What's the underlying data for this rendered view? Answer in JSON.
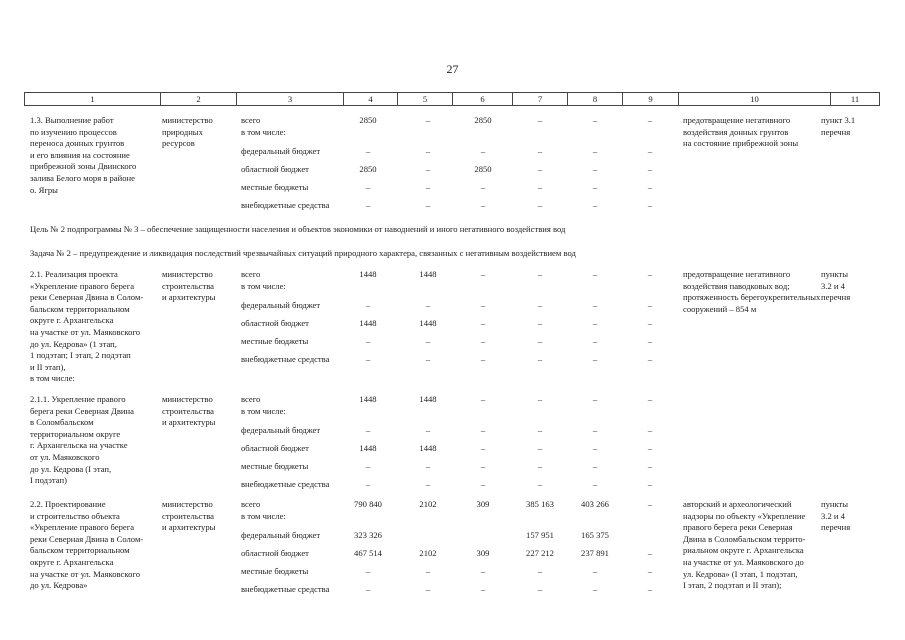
{
  "page_number": "27",
  "header_columns": [
    "1",
    "2",
    "3",
    "4",
    "5",
    "6",
    "7",
    "8",
    "9",
    "10",
    "11"
  ],
  "funding_labels": [
    "всего\nв том числе:",
    "федеральный бюджет",
    "областной бюджет",
    "местные бюджеты",
    "внебюджетные средства"
  ],
  "goal_text": "Цель № 2 подпрограммы № 3 – обеспечение защищенности населения и объектов экономики от наводнений и иного негативного воздействия вод",
  "task_text": "Задача № 2 – предупреждение и ликвидация последствий чрезвычайных ситуаций природного характера, связанных с негативным воздействием вод",
  "rows": [
    {
      "name": "1.3. Выполнение работ\nпо изучению процессов\nпереноса донных грунтов\nи его влияния на состояние\nприбрежной зоны Двинского\nзалива Белого моря в районе\nо. Ягры",
      "executor": "министерство\nприродных\nресурсов",
      "values": [
        [
          "2850",
          "–",
          "2850",
          "–",
          "–",
          "–"
        ],
        [
          "–",
          "–",
          "–",
          "–",
          "–",
          "–"
        ],
        [
          "2850",
          "–",
          "2850",
          "–",
          "–",
          "–"
        ],
        [
          "–",
          "–",
          "–",
          "–",
          "–",
          "–"
        ],
        [
          "–",
          "–",
          "–",
          "–",
          "–",
          "–"
        ]
      ],
      "result": "предотвращение негативного\nвоздействия донных грунтов\nна состояние прибрежной зоны",
      "reference": "пункт 3.1\nперечня"
    },
    {
      "name": "2.1. Реализация проекта\n«Укрепление правого берега\nреки Северная Двина в Солом-\nбальском территориальном\nокруге г. Архангельска\nна участке от ул. Маяковского\nдо ул. Кедрова» (1 этап,\n1 подэтап; I этап, 2 подэтап\nи II этап),\nв том числе:",
      "executor": "министерство\nстроительства\nи архитектуры",
      "values": [
        [
          "1448",
          "1448",
          "–",
          "–",
          "–",
          "–"
        ],
        [
          "–",
          "–",
          "–",
          "–",
          "–",
          "–"
        ],
        [
          "1448",
          "1448",
          "–",
          "–",
          "–",
          "–"
        ],
        [
          "–",
          "–",
          "–",
          "–",
          "–",
          "–"
        ],
        [
          "–",
          "–",
          "–",
          "–",
          "–",
          "–"
        ]
      ],
      "result": "предотвращение негативного\nвоздействия паводковых вод;\nпротяженность берегоукрепительных\nсооружений – 854 м",
      "reference": "пункты\n3.2 и 4\nперечня"
    },
    {
      "name": "2.1.1. Укрепление правого\nберега реки Северная Двина\nв Соломбальском\nтерриториальном округе\nг. Архангельска на участке\nот ул. Маяковского\nдо ул. Кедрова (I этап,\nI подэтап)",
      "executor": "министерство\nстроительства\nи архитектуры",
      "values": [
        [
          "1448",
          "1448",
          "–",
          "–",
          "–",
          "–"
        ],
        [
          "–",
          "–",
          "–",
          "–",
          "–",
          "–"
        ],
        [
          "1448",
          "1448",
          "–",
          "–",
          "–",
          "–"
        ],
        [
          "–",
          "–",
          "–",
          "–",
          "–",
          "–"
        ],
        [
          "–",
          "–",
          "–",
          "–",
          "–",
          "–"
        ]
      ],
      "result": "",
      "reference": ""
    },
    {
      "name": "2.2. Проектирование\nи строительство объекта\n«Укрепление правого берега\nреки Северная Двина в Солом-\nбальском территориальном\nокруге г. Архангельска\nна участке от ул. Маяковского\nдо ул. Кедрова»",
      "executor": "министерство\nстроительства\nи архитектуры",
      "values": [
        [
          "790 840",
          "2102",
          "309",
          "385 163",
          "403 266",
          "–"
        ],
        [
          "323 326",
          "",
          "",
          "157 951",
          "165 375",
          ""
        ],
        [
          "467 514",
          "2102",
          "309",
          "227 212",
          "237 891",
          "–"
        ],
        [
          "–",
          "–",
          "–",
          "–",
          "–",
          "–"
        ],
        [
          "–",
          "–",
          "–",
          "–",
          "–",
          "–"
        ]
      ],
      "result": "авторский и археологический\nнадзоры по объекту «Укрепление\nправого берега реки Северная\nДвина в Соломбальском террито-\nриальном округе г. Архангельска\nна участке от ул. Маяковского до\nул. Кедрова» (I этап, 1 подэтап,\nI этап, 2 подэтап и II этап);",
      "reference": "пункты\n3.2 и 4\nперечня"
    }
  ]
}
